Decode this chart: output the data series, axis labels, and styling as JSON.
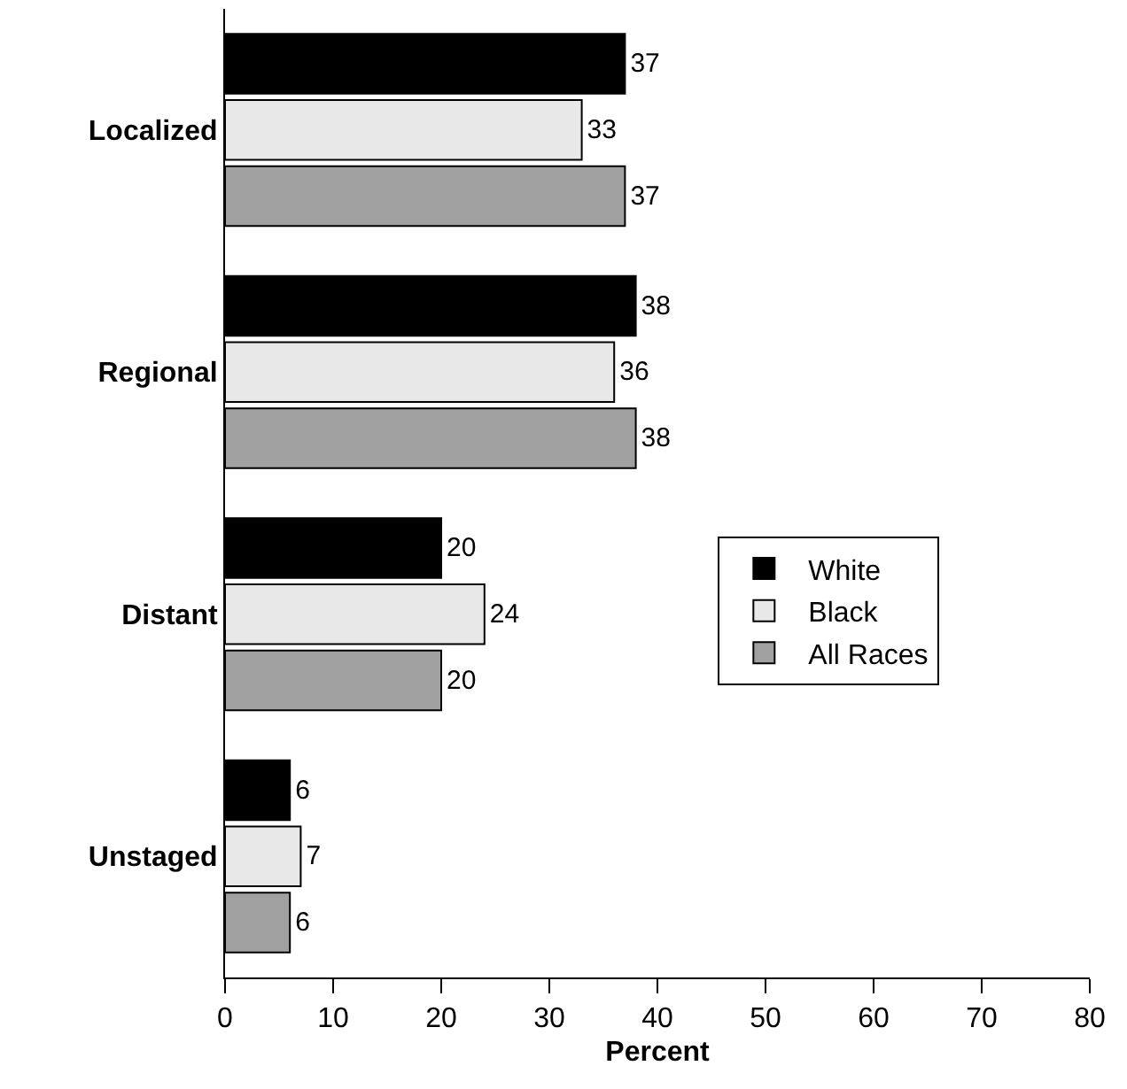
{
  "chart_data": {
    "type": "bar",
    "orientation": "horizontal",
    "categories": [
      "Localized",
      "Regional",
      "Distant",
      "Unstaged"
    ],
    "series": [
      {
        "name": "White",
        "color": "#000000",
        "values": [
          37,
          38,
          20,
          6
        ]
      },
      {
        "name": "Black",
        "color": "#e8e8e8",
        "values": [
          33,
          36,
          24,
          7
        ]
      },
      {
        "name": "All Races",
        "color": "#a0a0a0",
        "values": [
          37,
          38,
          20,
          6
        ]
      }
    ],
    "xlabel": "Percent",
    "xlim": [
      0,
      80
    ],
    "xticks": [
      0,
      10,
      20,
      30,
      40,
      50,
      60,
      70,
      80
    ],
    "grid": false,
    "legend": "right",
    "data_labels": true
  }
}
